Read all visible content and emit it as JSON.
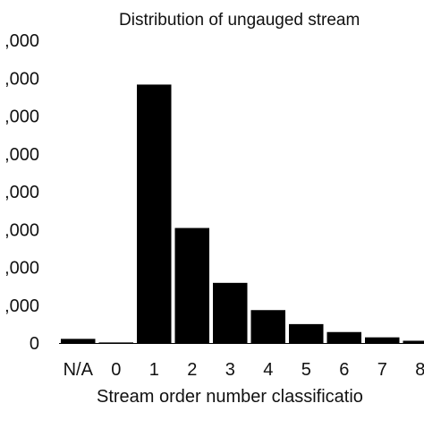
{
  "chart_data": {
    "type": "bar",
    "title": "Distribution of ungauged stream",
    "xlabel": "Stream order number classificatio",
    "ylabel": "",
    "categories": [
      "N/A",
      "0",
      "1",
      "2",
      "3",
      "4",
      "5",
      "6",
      "7",
      "8"
    ],
    "values": [
      110,
      15,
      6830,
      3040,
      1590,
      870,
      500,
      290,
      150,
      60
    ],
    "ylim": [
      0,
      8000
    ],
    "yticks": [
      0,
      1000,
      2000,
      3000,
      4000,
      5000,
      6000,
      7000,
      8000
    ],
    "ytick_labels": [
      "0",
      ",000",
      ",000",
      ",000",
      ",000",
      ",000",
      ",000",
      ",000",
      ",000"
    ],
    "grid": false,
    "bar_color": "#000000"
  }
}
